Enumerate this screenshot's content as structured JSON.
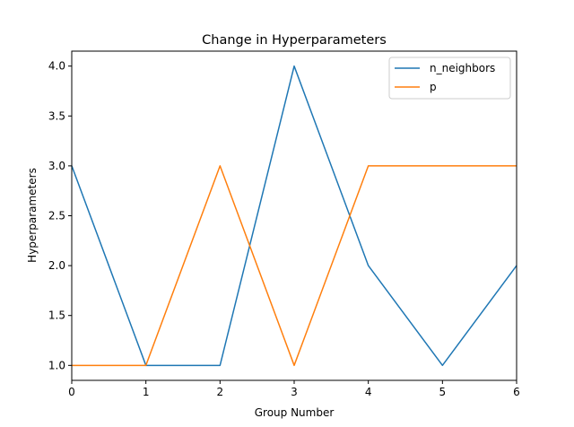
{
  "chart_data": {
    "type": "line",
    "title": "Change in Hyperparameters",
    "xlabel": "Group Number",
    "ylabel": "Hyperparameters",
    "x": [
      0,
      1,
      2,
      3,
      4,
      5,
      6
    ],
    "xlim": [
      0,
      6
    ],
    "ylim": [
      0.85,
      4.15
    ],
    "xticks": [
      "0",
      "1",
      "2",
      "3",
      "4",
      "5",
      "6"
    ],
    "yticks": [
      "1.0",
      "1.5",
      "2.0",
      "2.5",
      "3.0",
      "3.5",
      "4.0"
    ],
    "grid": false,
    "legend_position": "top-right",
    "series": [
      {
        "name": "n_neighbors",
        "color": "#1f77b4",
        "values": [
          3,
          1,
          1,
          4,
          2,
          1,
          2
        ]
      },
      {
        "name": "p",
        "color": "#ff7f0e",
        "values": [
          1,
          1,
          3,
          1,
          3,
          3,
          3
        ]
      }
    ]
  }
}
